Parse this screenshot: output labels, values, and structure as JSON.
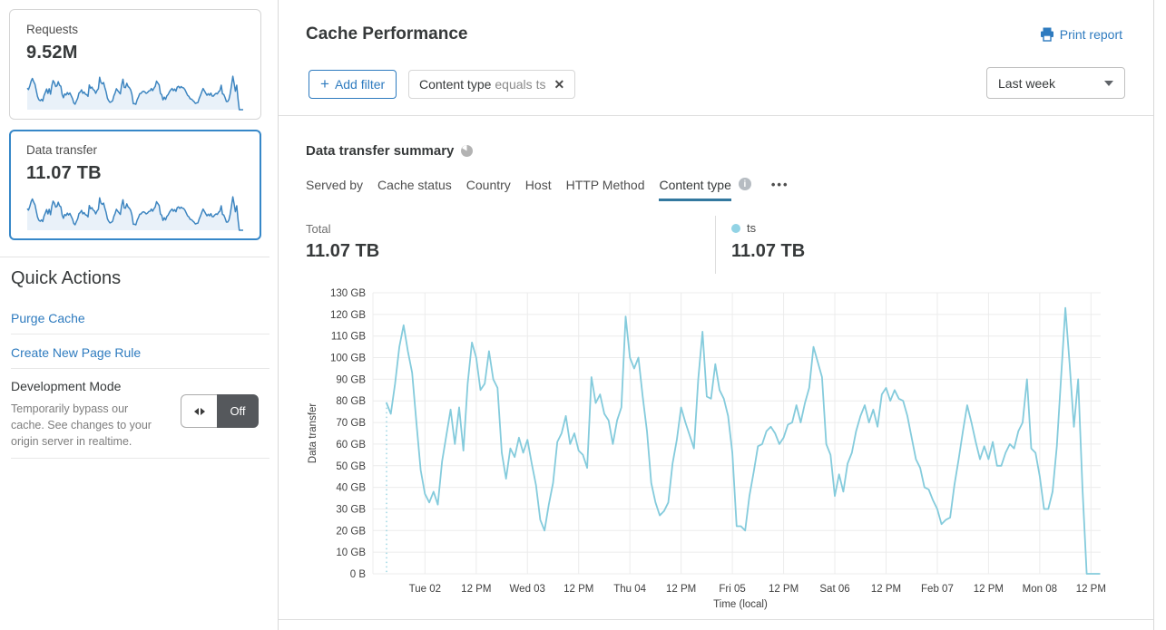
{
  "colors": {
    "link": "#2e7bbf",
    "selected_card_border": "#3687c8",
    "chart_line": "#84cbdc",
    "legend_dot": "#92d3e5",
    "spark_line": "#3d85c0",
    "spark_fill": "#e9f1f9",
    "tab_underline": "#33789f",
    "grid": "#ececec"
  },
  "sidebar": {
    "cards": [
      {
        "title": "Requests",
        "value": "9.52M"
      },
      {
        "title": "Data transfer",
        "value": "11.07 TB"
      }
    ],
    "quick_actions": {
      "title": "Quick Actions",
      "purge_link": "Purge Cache",
      "page_rule_link": "Create New Page Rule",
      "dev_mode": {
        "title": "Development Mode",
        "description": "Temporarily bypass our cache. See changes to your origin server in realtime.",
        "toggle_state": "Off"
      }
    }
  },
  "main": {
    "title": "Cache Performance",
    "print_report": "Print report",
    "filters": {
      "add_filter": "Add filter",
      "chip": {
        "field": "Content type",
        "operator": "equals",
        "value": "ts"
      },
      "time_range": "Last week"
    },
    "summary": {
      "title": "Data transfer summary",
      "tabs": [
        "Served by",
        "Cache status",
        "Country",
        "Host",
        "HTTP Method",
        "Content type"
      ],
      "active_tab": "Content type",
      "more_tabs_label": "•••",
      "total_label": "Total",
      "total_value": "11.07 TB",
      "legend": {
        "name": "ts",
        "value": "11.07 TB"
      }
    }
  },
  "chart_data": {
    "type": "line",
    "ylabel": "Data transfer",
    "xlabel": "Time (local)",
    "ylim": [
      0,
      130
    ],
    "grid": true,
    "y_tick_labels": [
      "0 B",
      "10 GB",
      "20 GB",
      "30 GB",
      "40 GB",
      "50 GB",
      "60 GB",
      "70 GB",
      "80 GB",
      "90 GB",
      "100 GB",
      "110 GB",
      "120 GB",
      "130 GB"
    ],
    "x_tick_labels": [
      "Tue 02",
      "12 PM",
      "Wed 03",
      "12 PM",
      "Thu 04",
      "12 PM",
      "Fri 05",
      "12 PM",
      "Sat 06",
      "12 PM",
      "Feb 07",
      "12 PM",
      "Mon 08",
      "12 PM"
    ],
    "points_interval": "1 hour",
    "x_first_tick_point_index": 9,
    "points_per_tick": 12,
    "series": [
      {
        "name": "ts",
        "unit": "GB",
        "values": [
          79,
          74,
          88,
          105,
          115,
          103,
          93,
          70,
          48,
          37,
          33,
          38,
          32,
          52,
          64,
          76,
          60,
          77,
          57,
          88,
          107,
          100,
          85,
          88,
          103,
          90,
          86,
          56,
          44,
          58,
          54,
          63,
          56,
          62,
          51,
          41,
          25,
          20,
          32,
          42,
          61,
          65,
          73,
          60,
          65,
          57,
          55,
          49,
          91,
          79,
          83,
          74,
          71,
          60,
          71,
          77,
          119,
          100,
          95,
          100,
          82,
          66,
          42,
          33,
          27,
          29,
          33,
          51,
          62,
          77,
          70,
          64,
          58,
          90,
          112,
          82,
          81,
          97,
          85,
          81,
          73,
          56,
          22,
          22,
          20,
          36,
          47,
          59,
          60,
          66,
          68,
          65,
          60,
          63,
          69,
          70,
          78,
          70,
          79,
          86,
          105,
          98,
          91,
          60,
          55,
          36,
          46,
          38,
          51,
          56,
          66,
          73,
          78,
          70,
          76,
          68,
          83,
          86,
          80,
          85,
          81,
          80,
          73,
          63,
          53,
          49,
          40,
          39,
          34,
          30,
          23,
          25,
          26,
          41,
          53,
          66,
          78,
          70,
          61,
          53,
          59,
          53,
          61,
          50,
          50,
          56,
          60,
          58,
          66,
          70,
          90,
          58,
          56,
          45,
          30,
          30,
          38,
          59,
          91,
          123,
          97,
          68,
          90,
          40,
          0,
          0,
          0,
          0
        ]
      }
    ]
  }
}
